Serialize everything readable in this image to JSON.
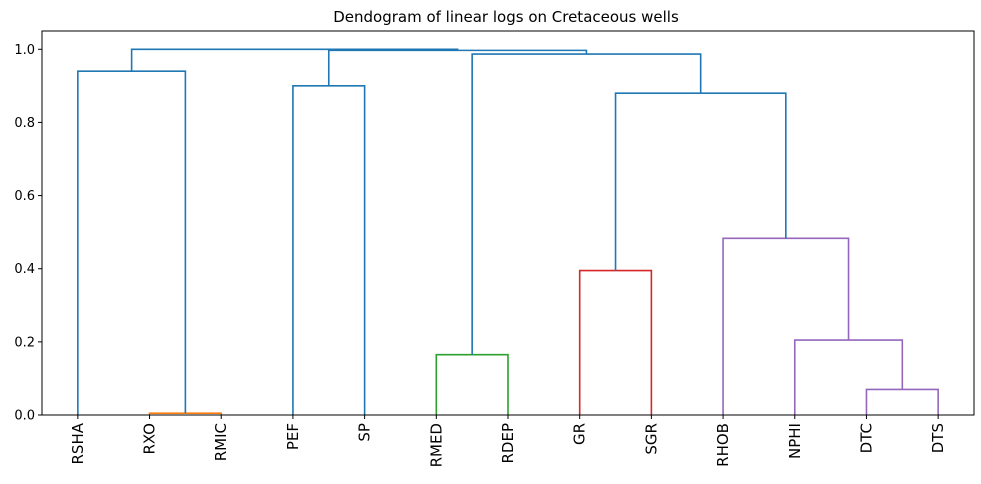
{
  "chart_data": {
    "type": "dendrogram",
    "title": "Dendogram of linear logs on Cretaceous wells",
    "xlabel": "",
    "ylabel": "",
    "ylim": [
      0,
      1.05
    ],
    "yticks": [
      "0.0",
      "0.2",
      "0.4",
      "0.6",
      "0.8",
      "1.0"
    ],
    "leaves": [
      "RSHA",
      "RXO",
      "RMIC",
      "PEF",
      "SP",
      "RMED",
      "RDEP",
      "GR",
      "SGR",
      "RHOB",
      "NPHI",
      "DTC",
      "DTS"
    ],
    "grid": false,
    "merges": [
      {
        "left": "RXO",
        "right": "RMIC",
        "height": 0.005,
        "color": "#ff7f0e"
      },
      {
        "left": "DTC",
        "right": "DTS",
        "height": 0.07,
        "color": "#9467bd"
      },
      {
        "left": "RMED",
        "right": "RDEP",
        "height": 0.165,
        "color": "#2ca02c"
      },
      {
        "left": "NPHI",
        "right": "DTC+DTS",
        "height": 0.205,
        "color": "#9467bd"
      },
      {
        "left": "GR",
        "right": "SGR",
        "height": 0.395,
        "color": "#d62728"
      },
      {
        "left": "RHOB",
        "right": "NPHI+DTC+DTS",
        "height": 0.483,
        "color": "#9467bd"
      },
      {
        "left": "GR+SGR",
        "right": "RHOB+NPHI+DTC+DTS",
        "height": 0.88,
        "color": "#1f77b4"
      },
      {
        "left": "PEF",
        "right": "SP",
        "height": 0.9,
        "color": "#1f77b4"
      },
      {
        "left": "RSHA",
        "right": "RXO+RMIC",
        "height": 0.94,
        "color": "#1f77b4"
      },
      {
        "left": "RMED+RDEP",
        "right": "GR+SGR+RHOB+NPHI+DTC+DTS",
        "height": 0.987,
        "color": "#1f77b4"
      },
      {
        "left": "PEF+SP",
        "right": "RMED+RDEP+GR+SGR+RHOB+NPHI+DTC+DTS",
        "height": 0.997,
        "color": "#1f77b4"
      },
      {
        "left": "RSHA+RXO+RMIC",
        "right": "PEF+SP+RMED+RDEP+GR+SGR+RHOB+NPHI+DTC+DTS",
        "height": 1.0,
        "color": "#1f77b4"
      }
    ]
  }
}
